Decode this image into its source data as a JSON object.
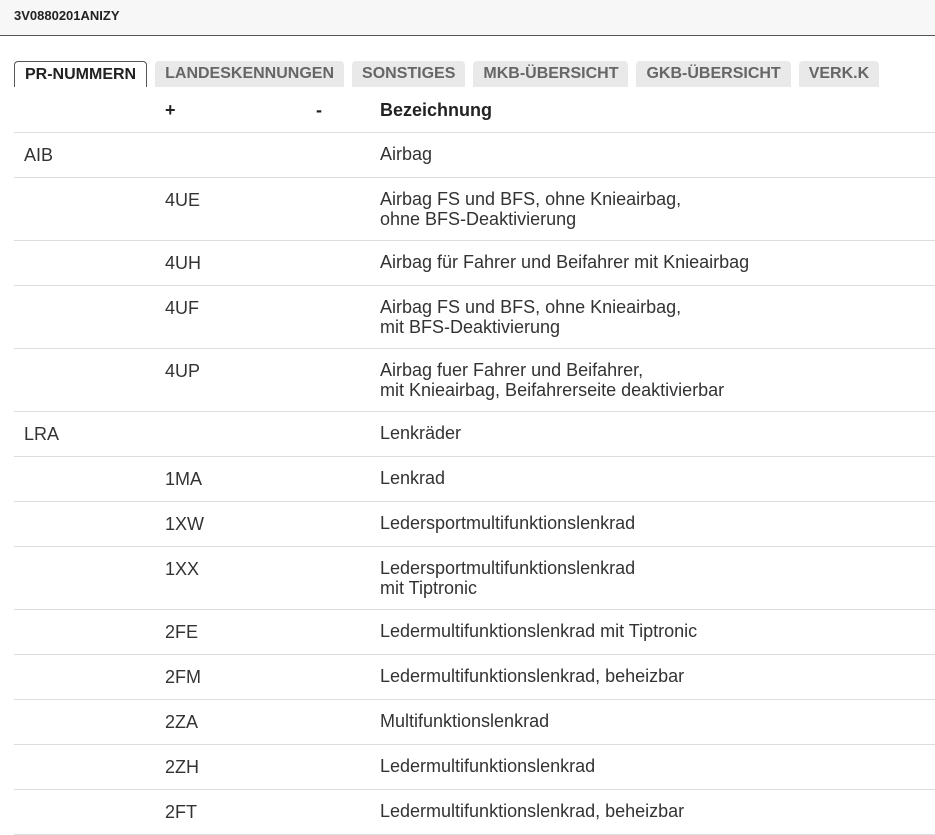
{
  "header": {
    "title": "3V0880201ANIZY"
  },
  "tabs": [
    "PR-NUMMERN",
    "LANDESKENNUNGEN",
    "SONSTIGES",
    "MKB-ÜBERSICHT",
    "GKB-ÜBERSICHT",
    "VERK.K"
  ],
  "table": {
    "columns": [
      "+",
      "-",
      "Bezeichnung"
    ],
    "rows": [
      {
        "group": "AIB",
        "description": [
          "Airbag"
        ]
      },
      {
        "plus": "4UE",
        "description": [
          "Airbag FS und BFS, ohne Knieairbag,",
          "ohne BFS-Deaktivierung"
        ]
      },
      {
        "plus": "4UH",
        "description": [
          "Airbag für Fahrer und Beifahrer mit Knieairbag"
        ]
      },
      {
        "plus": "4UF",
        "description": [
          "Airbag FS und BFS, ohne Knieairbag,",
          "mit BFS-Deaktivierung"
        ]
      },
      {
        "plus": "4UP",
        "description": [
          "Airbag fuer Fahrer und Beifahrer,",
          "mit Knieairbag, Beifahrerseite deaktivierbar"
        ]
      },
      {
        "group": "LRA",
        "description": [
          "Lenkräder"
        ]
      },
      {
        "plus": "1MA",
        "description": [
          "Lenkrad"
        ]
      },
      {
        "plus": "1XW",
        "description": [
          "Ledersportmultifunktionslenkrad"
        ]
      },
      {
        "plus": "1XX",
        "description": [
          "Ledersportmultifunktionslenkrad",
          "mit Tiptronic"
        ]
      },
      {
        "plus": "2FE",
        "description": [
          "Ledermultifunktionslenkrad mit Tiptronic"
        ]
      },
      {
        "plus": "2FM",
        "description": [
          "Ledermultifunktionslenkrad, beheizbar"
        ]
      },
      {
        "plus": "2ZA",
        "description": [
          "Multifunktionslenkrad"
        ]
      },
      {
        "plus": "2ZH",
        "description": [
          "Ledermultifunktionslenkrad"
        ]
      },
      {
        "plus": "2FT",
        "description": [
          "Ledermultifunktionslenkrad, beheizbar"
        ]
      }
    ]
  }
}
